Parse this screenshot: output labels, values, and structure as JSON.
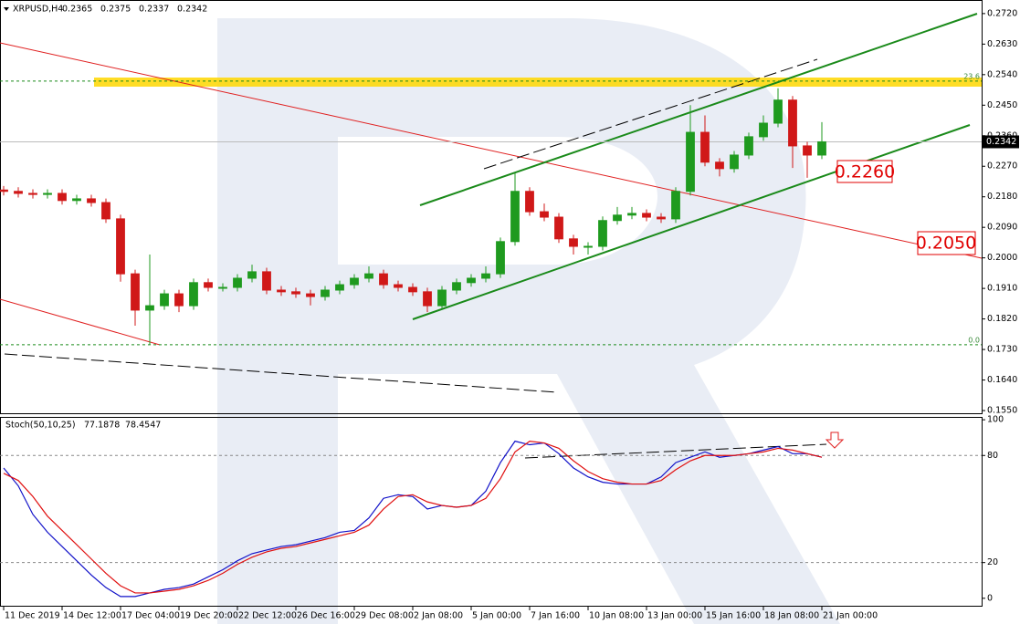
{
  "chart_data": [
    {
      "type": "candlestick",
      "symbol": "XRPUSD,H4",
      "ohlc": [
        0.2365,
        0.2375,
        0.2337,
        0.2342
      ],
      "last_price": {
        "value": 0.2342,
        "label": "0.2342"
      },
      "bull_color": "#1f9a1f",
      "bear_color": "#d01818",
      "x": [
        0,
        4,
        8,
        12,
        16,
        20,
        24,
        28,
        32,
        36,
        40,
        44,
        48,
        52,
        56,
        60,
        64,
        68,
        72,
        76,
        80,
        84,
        88,
        92,
        96,
        100,
        104,
        108,
        112,
        116,
        120,
        124,
        128,
        132,
        136,
        140,
        144,
        148,
        152,
        156,
        160,
        164,
        168,
        172,
        176,
        180,
        184,
        188,
        192,
        196,
        200,
        204,
        208,
        212,
        216,
        220,
        224
      ],
      "open": [
        0.22,
        0.2196,
        0.219,
        0.2187,
        0.219,
        0.2169,
        0.2174,
        0.2163,
        0.2115,
        0.1953,
        0.1846,
        0.1859,
        0.1894,
        0.1859,
        0.1927,
        0.1913,
        0.1913,
        0.194,
        0.1959,
        0.1905,
        0.19,
        0.1894,
        0.1886,
        0.1905,
        0.1921,
        0.194,
        0.1953,
        0.1921,
        0.1913,
        0.19,
        0.1859,
        0.1905,
        0.1927,
        0.194,
        0.1953,
        0.2048,
        0.2196,
        0.2136,
        0.212,
        0.2056,
        0.2034,
        0.2034,
        0.211,
        0.2126,
        0.2131,
        0.212,
        0.2115,
        0.2196,
        0.237,
        0.2282,
        0.2263,
        0.2303,
        0.2357,
        0.2397,
        0.2465,
        0.233,
        0.2303
      ],
      "high": [
        0.2212,
        0.2208,
        0.2202,
        0.2202,
        0.2202,
        0.2186,
        0.2186,
        0.2175,
        0.2127,
        0.1965,
        0.201,
        0.1906,
        0.1906,
        0.1939,
        0.1939,
        0.1925,
        0.1952,
        0.198,
        0.1971,
        0.1917,
        0.1912,
        0.1906,
        0.1917,
        0.1933,
        0.1952,
        0.1975,
        0.1965,
        0.1933,
        0.1925,
        0.1912,
        0.1917,
        0.1939,
        0.1952,
        0.1975,
        0.206,
        0.2249,
        0.2208,
        0.216,
        0.2132,
        0.2068,
        0.2046,
        0.2122,
        0.215,
        0.215,
        0.2143,
        0.2132,
        0.2208,
        0.245,
        0.242,
        0.2294,
        0.2315,
        0.2369,
        0.242,
        0.25,
        0.2477,
        0.2342,
        0.24
      ],
      "low": [
        0.2184,
        0.2178,
        0.2175,
        0.2175,
        0.2157,
        0.2157,
        0.2151,
        0.2103,
        0.193,
        0.18,
        0.1744,
        0.1847,
        0.184,
        0.1847,
        0.1901,
        0.1901,
        0.1901,
        0.1928,
        0.1893,
        0.1888,
        0.1882,
        0.186,
        0.1874,
        0.1893,
        0.1909,
        0.1928,
        0.1909,
        0.1901,
        0.1888,
        0.184,
        0.1847,
        0.1893,
        0.1915,
        0.1928,
        0.1941,
        0.2036,
        0.2124,
        0.2108,
        0.2044,
        0.201,
        0.201,
        0.2022,
        0.2098,
        0.2114,
        0.2108,
        0.2103,
        0.2103,
        0.2184,
        0.227,
        0.224,
        0.2251,
        0.2291,
        0.2345,
        0.2385,
        0.2265,
        0.2236,
        0.2291
      ],
      "close": [
        0.2196,
        0.219,
        0.2187,
        0.219,
        0.2169,
        0.2174,
        0.2163,
        0.2115,
        0.1953,
        0.1846,
        0.1859,
        0.1894,
        0.1859,
        0.1927,
        0.1913,
        0.1913,
        0.194,
        0.1959,
        0.1905,
        0.19,
        0.1894,
        0.1886,
        0.1905,
        0.1921,
        0.194,
        0.1953,
        0.1921,
        0.1913,
        0.19,
        0.1859,
        0.1905,
        0.1927,
        0.194,
        0.1953,
        0.2048,
        0.2196,
        0.2136,
        0.212,
        0.2056,
        0.2034,
        0.2034,
        0.211,
        0.2126,
        0.2131,
        0.212,
        0.2115,
        0.2196,
        0.237,
        0.2282,
        0.2263,
        0.2303,
        0.2357,
        0.2397,
        0.2465,
        0.233,
        0.2303,
        0.2342
      ],
      "xlim": [
        -1,
        267.75
      ],
      "ylim": [
        0.1542,
        0.276
      ],
      "yticks": [
        {
          "value": 0.272,
          "label": "0.2720"
        },
        {
          "value": 0.263,
          "label": "0.2630"
        },
        {
          "value": 0.254,
          "label": "0.2540"
        },
        {
          "value": 0.245,
          "label": "0.2450"
        },
        {
          "value": 0.236,
          "label": "0.2360"
        },
        {
          "value": 0.227,
          "label": "0.2270"
        },
        {
          "value": 0.218,
          "label": "0.2180"
        },
        {
          "value": 0.209,
          "label": "0.2090"
        },
        {
          "value": 0.2,
          "label": "0.2000"
        },
        {
          "value": 0.191,
          "label": "0.1910"
        },
        {
          "value": 0.182,
          "label": "0.1820"
        },
        {
          "value": 0.173,
          "label": "0.1730"
        },
        {
          "value": 0.164,
          "label": "0.1640"
        },
        {
          "value": 0.155,
          "label": "0.1550"
        }
      ],
      "fib_levels": [
        {
          "label": "23.6",
          "value": 0.2521
        },
        {
          "label": "0.0",
          "value": 0.1744
        }
      ],
      "annotations": [
        "0.2260",
        "0.2050"
      ]
    },
    {
      "type": "line",
      "title": "Stoch(50,10,25)",
      "title_values": [
        77.1878,
        78.4547
      ],
      "x": [
        0,
        4,
        8,
        12,
        16,
        20,
        24,
        28,
        32,
        36,
        40,
        44,
        48,
        52,
        56,
        60,
        64,
        68,
        72,
        76,
        80,
        84,
        88,
        92,
        96,
        100,
        104,
        108,
        112,
        116,
        120,
        124,
        128,
        132,
        136,
        140,
        144,
        148,
        152,
        156,
        160,
        164,
        168,
        172,
        176,
        180,
        184,
        188,
        192,
        196,
        200,
        204,
        208,
        212,
        216,
        220,
        224
      ],
      "series": [
        {
          "name": "Main",
          "color": "#1010c8",
          "values": [
            73,
            63,
            47,
            37,
            29,
            21,
            13,
            6,
            1,
            1,
            3,
            5,
            6,
            8,
            12,
            16,
            21,
            25,
            27,
            29,
            30,
            32,
            34,
            37,
            38,
            45,
            56,
            58,
            57,
            50,
            52,
            51,
            52,
            60,
            76,
            88,
            86,
            87,
            81,
            73,
            68,
            65,
            64,
            64,
            64,
            68,
            76,
            79,
            82,
            79,
            80,
            81,
            83,
            85,
            81,
            81,
            79
          ]
        },
        {
          "name": "Signal",
          "color": "#e01010",
          "values": [
            70,
            66,
            57,
            46,
            38,
            30,
            22,
            14,
            7,
            3,
            3,
            4,
            5,
            7,
            10,
            14,
            19,
            23,
            26,
            28,
            29,
            31,
            33,
            35,
            37,
            41,
            50,
            57,
            58,
            54,
            52,
            51,
            52,
            56,
            67,
            82,
            88,
            87,
            84,
            77,
            71,
            67,
            65,
            64,
            64,
            66,
            72,
            77,
            80,
            80,
            80,
            81,
            82,
            84,
            83,
            81,
            79
          ]
        }
      ],
      "xlim": [
        -1,
        267.75
      ],
      "ylim": [
        -4.7,
        101.6
      ],
      "yticks": [
        100,
        80,
        20,
        0
      ],
      "levels": [
        80,
        20
      ],
      "xticks": [
        {
          "value": 0,
          "label": "11 Dec 2019"
        },
        {
          "value": 16,
          "label": "14 Dec 12:00"
        },
        {
          "value": 32,
          "label": "17 Dec 04:00"
        },
        {
          "value": 48,
          "label": "19 Dec 20:00"
        },
        {
          "value": 64,
          "label": "22 Dec 12:00"
        },
        {
          "value": 80,
          "label": "26 Dec 16:00"
        },
        {
          "value": 96,
          "label": "29 Dec 08:00"
        },
        {
          "value": 112,
          "label": "2 Jan 08:00"
        },
        {
          "value": 128,
          "label": "5 Jan 00:00"
        },
        {
          "value": 144,
          "label": "7 Jan 16:00"
        },
        {
          "value": 160,
          "label": "10 Jan 08:00"
        },
        {
          "value": 176,
          "label": "13 Jan 00:00"
        },
        {
          "value": 192,
          "label": "15 Jan 16:00"
        },
        {
          "value": 208,
          "label": "18 Jan 08:00"
        },
        {
          "value": 224,
          "label": "21 Jan 00:00"
        }
      ]
    }
  ]
}
